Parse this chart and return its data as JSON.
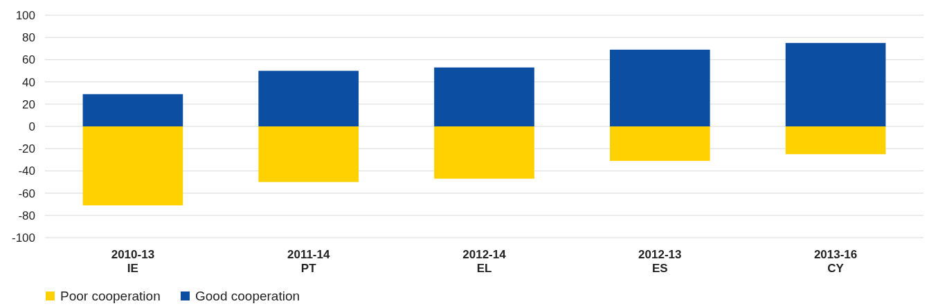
{
  "chart_data": {
    "type": "bar",
    "stacked": true,
    "categories": [
      "2010-13\nIE",
      "2011-14\nPT",
      "2012-14\nEL",
      "2012-13\nES",
      "2013-16\nCY"
    ],
    "series": [
      {
        "name": "Poor cooperation",
        "color": "#ffd100",
        "values": [
          -71,
          -50,
          -47,
          -31,
          -25
        ]
      },
      {
        "name": "Good cooperation",
        "color": "#0b4ea2",
        "values": [
          29,
          50,
          53,
          69,
          75
        ]
      }
    ],
    "ylim": [
      -100,
      100
    ],
    "yticks": [
      -100,
      -80,
      -60,
      -40,
      -20,
      0,
      20,
      40,
      60,
      80,
      100
    ],
    "grid": "y",
    "legend": "bottom left"
  }
}
